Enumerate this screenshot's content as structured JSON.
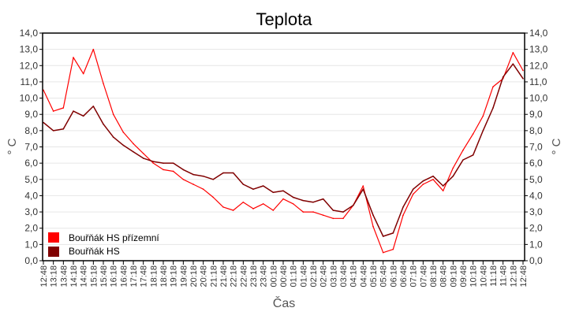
{
  "chart_data": {
    "type": "line",
    "title": "Teplota",
    "xlabel": "Čas",
    "ylabel": "° C",
    "ylabel_right": "° C",
    "ylim": [
      0,
      14
    ],
    "yticks": [
      "0,0",
      "1,0",
      "2,0",
      "3,0",
      "4,0",
      "5,0",
      "6,0",
      "7,0",
      "8,0",
      "9,0",
      "10,0",
      "11,0",
      "12,0",
      "13,0",
      "14,0"
    ],
    "grid": true,
    "legend_position": "bottom-left",
    "x": [
      "12:48",
      "13:18",
      "13:48",
      "14:18",
      "14:48",
      "15:18",
      "15:48",
      "16:18",
      "16:48",
      "17:18",
      "17:48",
      "18:18",
      "18:48",
      "19:18",
      "19:48",
      "20:18",
      "20:48",
      "21:18",
      "21:48",
      "22:18",
      "22:48",
      "23:18",
      "23:48",
      "00:18",
      "00:48",
      "01:18",
      "01:48",
      "02:18",
      "02:48",
      "03:18",
      "03:48",
      "04:18",
      "04:48",
      "05:18",
      "05:48",
      "06:18",
      "06:48",
      "07:18",
      "07:48",
      "08:18",
      "08:48",
      "09:18",
      "09:48",
      "10:18",
      "10:48",
      "11:18",
      "11:48",
      "12:18",
      "12:48"
    ],
    "series": [
      {
        "name": "Bouřňák HS přízemní",
        "color": "#ff0000",
        "values": [
          10.5,
          9.2,
          9.4,
          12.5,
          11.5,
          13.0,
          10.9,
          9.0,
          7.9,
          7.2,
          6.6,
          6.0,
          5.6,
          5.5,
          5.0,
          4.7,
          4.4,
          3.9,
          3.3,
          3.1,
          3.6,
          3.2,
          3.5,
          3.1,
          3.8,
          3.5,
          3.0,
          3.0,
          2.8,
          2.6,
          2.6,
          3.4,
          4.6,
          2.1,
          0.5,
          0.7,
          2.8,
          4.1,
          4.7,
          5.0,
          4.3,
          5.7,
          6.8,
          7.8,
          8.9,
          10.7,
          11.2,
          12.8,
          11.7
        ]
      },
      {
        "name": "Bouřňák HS",
        "color": "#800000",
        "values": [
          8.5,
          8.0,
          8.1,
          9.2,
          8.9,
          9.5,
          8.4,
          7.6,
          7.1,
          6.7,
          6.3,
          6.1,
          6.0,
          6.0,
          5.6,
          5.3,
          5.2,
          5.0,
          5.4,
          5.4,
          4.7,
          4.4,
          4.6,
          4.2,
          4.3,
          3.9,
          3.7,
          3.6,
          3.8,
          3.1,
          3.0,
          3.4,
          4.4,
          2.8,
          1.5,
          1.7,
          3.3,
          4.4,
          4.9,
          5.2,
          4.6,
          5.2,
          6.2,
          6.5,
          8.0,
          9.4,
          11.3,
          12.1,
          11.2
        ]
      }
    ]
  }
}
